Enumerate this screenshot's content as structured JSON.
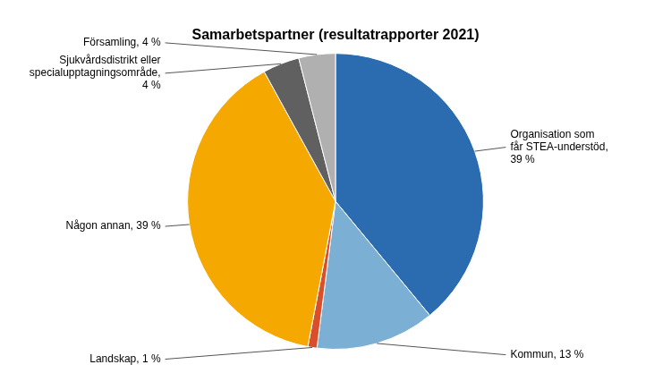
{
  "chart_data": {
    "type": "pie",
    "title": "Samarbetspartner (resultatrapporter 2021)",
    "categories": [
      "Organisation som\nfår STEA-understöd,\n39 %",
      "Kommun, 13 %",
      "Landskap, 1 %",
      "Någon annan, 39 %",
      "Sjukvårdsdistrikt eller\nspecialupptagningsområde,\n4 %",
      "Församling, 4 %"
    ],
    "values": [
      39,
      13,
      1,
      39,
      4,
      4
    ],
    "colors": [
      "#2B6CB0",
      "#7BAFD4",
      "#D94F2B",
      "#F5A800",
      "#606060",
      "#B0B0B0"
    ]
  }
}
